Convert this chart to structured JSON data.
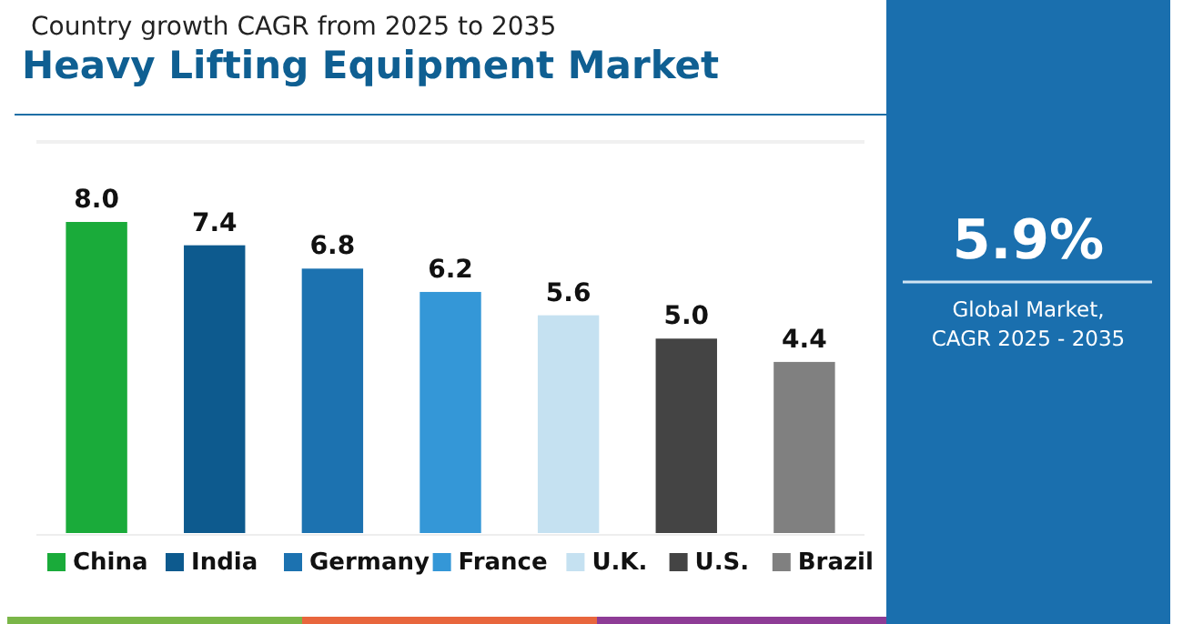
{
  "chart_data": {
    "type": "bar",
    "subtitle": "Country growth CAGR from 2025 to 2035",
    "title": "Heavy Lifting Equipment Market",
    "categories": [
      "China",
      "India",
      "Germany",
      "France",
      "U.K.",
      "U.S.",
      "Brazil"
    ],
    "values": [
      8.0,
      7.4,
      6.8,
      6.2,
      5.6,
      5.0,
      4.4
    ],
    "colors": [
      "#1aab3a",
      "#0d5a8e",
      "#1c72b0",
      "#3497d7",
      "#c5e1f1",
      "#444444",
      "#808080"
    ],
    "value_labels": [
      "8.0",
      "7.4",
      "6.8",
      "6.2",
      "5.6",
      "5.0",
      "4.4"
    ],
    "annotations": [
      "5.9%",
      "Global Market,\nCAGR 2025 - 2035"
    ]
  }
}
